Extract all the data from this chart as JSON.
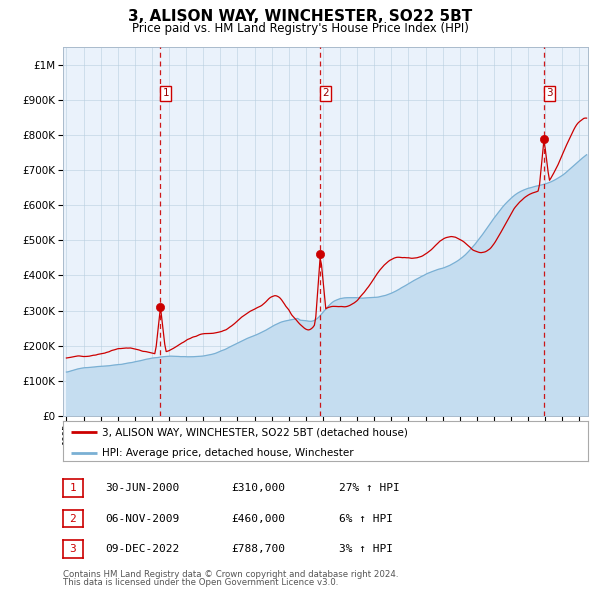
{
  "title": "3, ALISON WAY, WINCHESTER, SO22 5BT",
  "subtitle": "Price paid vs. HM Land Registry's House Price Index (HPI)",
  "legend_red": "3, ALISON WAY, WINCHESTER, SO22 5BT (detached house)",
  "legend_blue": "HPI: Average price, detached house, Winchester",
  "footer1": "Contains HM Land Registry data © Crown copyright and database right 2024.",
  "footer2": "This data is licensed under the Open Government Licence v3.0.",
  "sales": [
    {
      "num": 1,
      "date": "30-JUN-2000",
      "price": 310000,
      "pct": "27%",
      "dir": "↑"
    },
    {
      "num": 2,
      "date": "06-NOV-2009",
      "price": 460000,
      "pct": "6%",
      "dir": "↑"
    },
    {
      "num": 3,
      "date": "09-DEC-2022",
      "price": 788700,
      "pct": "3%",
      "dir": "↑"
    }
  ],
  "sale_years": [
    2000.5,
    2009.85,
    2022.93
  ],
  "sale_prices": [
    310000,
    460000,
    788700
  ],
  "ylim": [
    0,
    1050000
  ],
  "xlim_start": 1994.8,
  "xlim_end": 2025.5,
  "plot_bg": "#eaf2fb",
  "grid_color": "#b8cfe0",
  "red_line_color": "#cc0000",
  "blue_line_color": "#7ab0d4",
  "dashed_color": "#cc0000",
  "fill_color": "#c5ddf0"
}
